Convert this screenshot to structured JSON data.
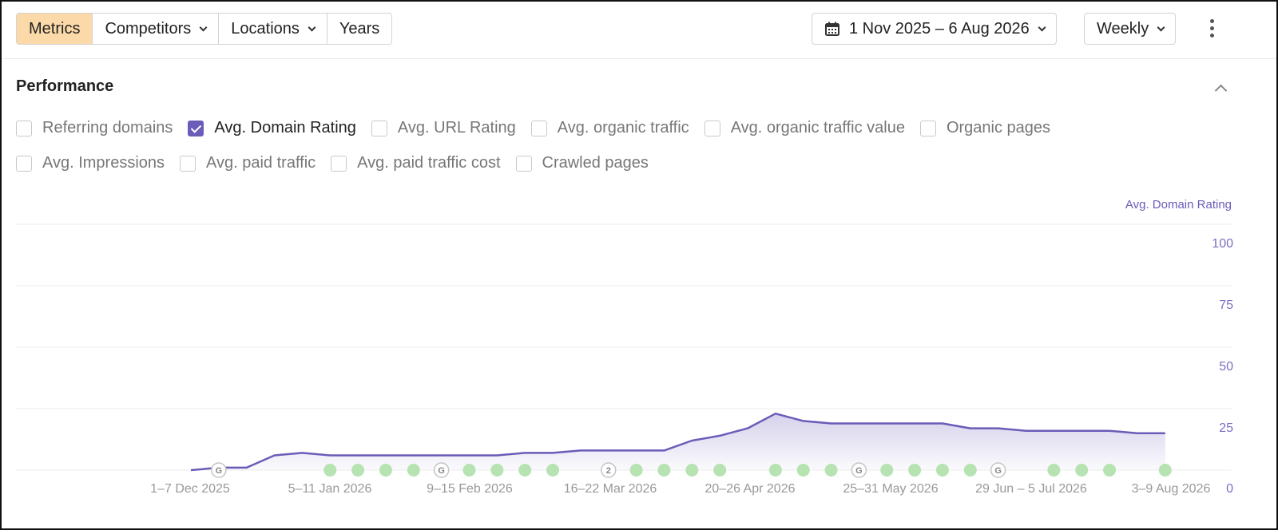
{
  "toolbar": {
    "tabs": [
      {
        "label": "Metrics",
        "active": true,
        "dropdown": false
      },
      {
        "label": "Competitors",
        "active": false,
        "dropdown": true
      },
      {
        "label": "Locations",
        "active": false,
        "dropdown": true
      },
      {
        "label": "Years",
        "active": false,
        "dropdown": false
      }
    ],
    "date_range": "1 Nov 2025 – 6 Aug 2026",
    "interval": "Weekly",
    "icons": {
      "calendar": "calendar-icon",
      "more": "more-vertical-icon",
      "chevron": "chevron-down-icon"
    }
  },
  "performance": {
    "title": "Performance",
    "collapse_icon": "chevron-up-icon",
    "metrics_row1": [
      {
        "label": "Referring domains",
        "checked": false
      },
      {
        "label": "Avg. Domain Rating",
        "checked": true
      },
      {
        "label": "Avg. URL Rating",
        "checked": false
      },
      {
        "label": "Avg. organic traffic",
        "checked": false
      },
      {
        "label": "Avg. organic traffic value",
        "checked": false
      },
      {
        "label": "Organic pages",
        "checked": false
      }
    ],
    "metrics_row2": [
      {
        "label": "Avg. Impressions",
        "checked": false
      },
      {
        "label": "Avg. paid traffic",
        "checked": false
      },
      {
        "label": "Avg. paid traffic cost",
        "checked": false
      },
      {
        "label": "Crawled pages",
        "checked": false
      }
    ]
  },
  "colors": {
    "accent": "#6a5cb8",
    "active_tab": "#fcd9a8",
    "event_marker": "#b6e3b1"
  },
  "chart_data": {
    "type": "area",
    "ylabel": "Avg. Domain Rating",
    "ylim": [
      0,
      100
    ],
    "yticks": [
      0,
      25,
      50,
      75,
      100
    ],
    "xtick_labels": [
      "1–7 Dec 2025",
      "5–11 Jan 2026",
      "9–15 Feb 2026",
      "16–22 Mar 2026",
      "20–26 Apr 2026",
      "25–31 May 2026",
      "29 Jun – 5 Jul 2026",
      "3–9 Aug 2026"
    ],
    "x_week_start": [
      "2025-12-01",
      "2025-12-08",
      "2025-12-15",
      "2025-12-22",
      "2025-12-29",
      "2026-01-05",
      "2026-01-12",
      "2026-01-19",
      "2026-01-26",
      "2026-02-02",
      "2026-02-09",
      "2026-02-16",
      "2026-02-23",
      "2026-03-02",
      "2026-03-09",
      "2026-03-16",
      "2026-03-23",
      "2026-03-30",
      "2026-04-06",
      "2026-04-13",
      "2026-04-20",
      "2026-04-27",
      "2026-05-04",
      "2026-05-11",
      "2026-05-18",
      "2026-05-25",
      "2026-06-01",
      "2026-06-08",
      "2026-06-15",
      "2026-06-22",
      "2026-06-29",
      "2026-07-06",
      "2026-07-13",
      "2026-07-20",
      "2026-07-27",
      "2026-08-03"
    ],
    "series": [
      {
        "name": "Avg. Domain Rating",
        "values": [
          0,
          1,
          1,
          6,
          7,
          6,
          6,
          6,
          6,
          6,
          6,
          6,
          7,
          7,
          8,
          8,
          8,
          8,
          12,
          14,
          17,
          23,
          20,
          19,
          19,
          19,
          19,
          19,
          17,
          17,
          16,
          16,
          16,
          16,
          15,
          15
        ]
      }
    ],
    "event_markers": [
      "dot",
      "G",
      "dot",
      "dot",
      "dot",
      "dot",
      "dot",
      "dot",
      "dot",
      "G",
      "dot",
      "dot",
      "dot",
      "dot",
      "dot",
      "2",
      "dot",
      "dot",
      "dot",
      "dot",
      "dot",
      "dot",
      "dot",
      "dot",
      "G",
      "dot",
      "dot",
      "dot",
      "dot",
      "G",
      "dot",
      "dot",
      "dot",
      "dot",
      "dot",
      "dot"
    ],
    "event_visible": [
      false,
      true,
      false,
      false,
      false,
      true,
      true,
      true,
      true,
      true,
      true,
      true,
      true,
      true,
      false,
      true,
      true,
      true,
      true,
      true,
      false,
      true,
      true,
      true,
      true,
      true,
      true,
      true,
      true,
      true,
      false,
      true,
      true,
      true,
      false,
      true
    ],
    "grid": true
  }
}
